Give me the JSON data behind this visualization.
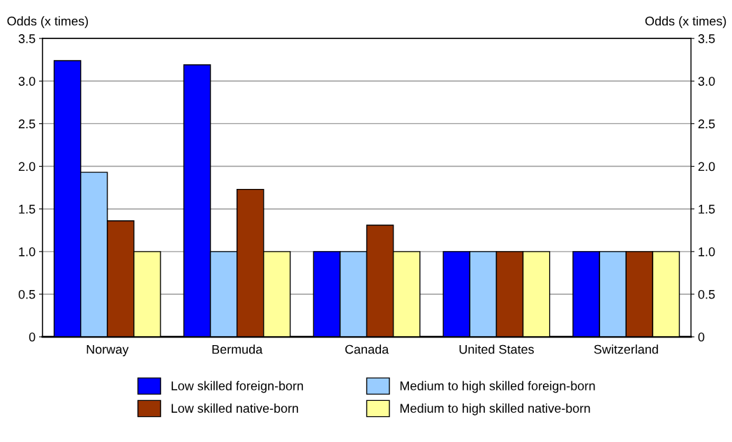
{
  "chart_data": {
    "type": "bar",
    "ylabel": "Odds (x times)",
    "y2label": "Odds (x times)",
    "categories": [
      "Norway",
      "Bermuda",
      "Canada",
      "United States",
      "Switzerland"
    ],
    "series": [
      {
        "name": "Low skilled foreign-born",
        "color": "#0000ff",
        "values": [
          3.24,
          3.19,
          1.0,
          1.0,
          1.0
        ]
      },
      {
        "name": "Medium to high skilled foreign-born",
        "color": "#99ccff",
        "values": [
          1.93,
          1.0,
          1.0,
          1.0,
          1.0
        ]
      },
      {
        "name": "Low skilled native-born",
        "color": "#993300",
        "values": [
          1.36,
          1.73,
          1.31,
          1.0,
          1.0
        ]
      },
      {
        "name": "Medium to high skilled native-born",
        "color": "#ffff99",
        "values": [
          1.0,
          1.0,
          1.0,
          1.0,
          1.0
        ]
      }
    ],
    "ylim": [
      0,
      3.5
    ],
    "yticks": [
      0,
      0.5,
      {
        "value": 1,
        "label": "1.0"
      },
      1.5,
      {
        "value": 2,
        "label": "2.0"
      },
      2.5,
      {
        "value": 3,
        "label": "3.0"
      },
      3.5
    ],
    "y2lim": [
      0,
      3.5
    ],
    "y2ticks": [
      0,
      0.5,
      {
        "value": 1,
        "label": "1.0"
      },
      1.5,
      {
        "value": 2,
        "label": "2.0"
      },
      2.5,
      {
        "value": 3,
        "label": "3.0"
      },
      3.5
    ],
    "grid": "y",
    "legend": "bottom"
  }
}
